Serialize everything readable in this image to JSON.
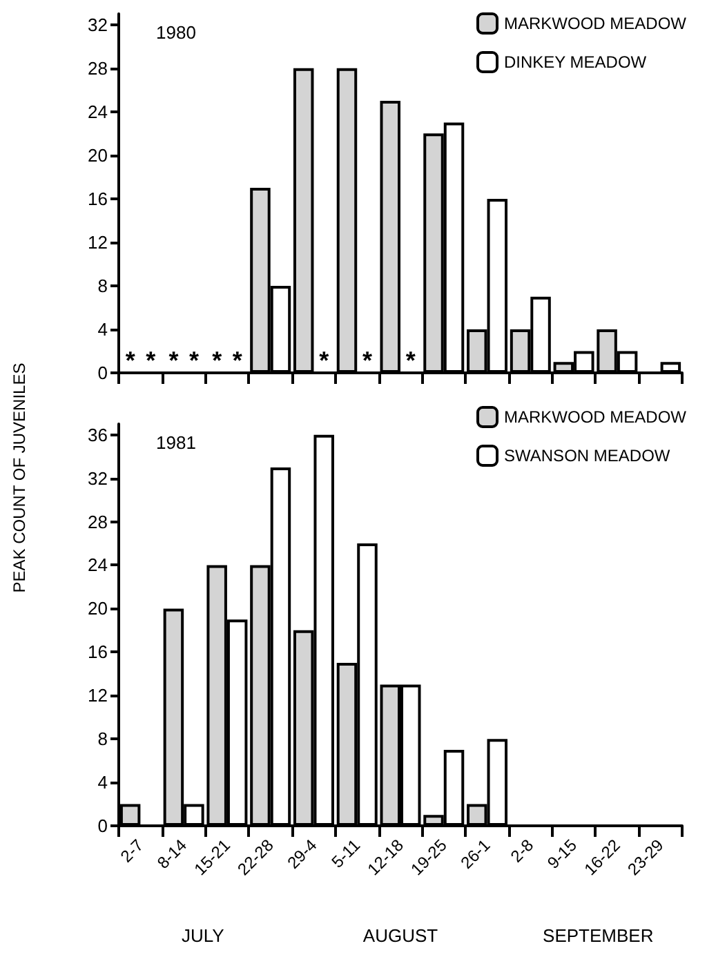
{
  "chart_data": [
    {
      "type": "bar",
      "title": "1980",
      "ylabel": "PEAK COUNT OF JUVENILES",
      "categories": [
        null,
        null,
        null,
        null,
        null,
        null,
        null,
        null,
        null,
        null,
        null,
        null,
        null
      ],
      "series": [
        {
          "name": "MARKWOOD MEADOW",
          "color": "#d4d4d4",
          "values": [
            null,
            null,
            null,
            17,
            28,
            28,
            25,
            22,
            4,
            4,
            1,
            4,
            0
          ]
        },
        {
          "name": "DINKEY MEADOW",
          "color": "#ffffff",
          "values": [
            null,
            null,
            null,
            8,
            null,
            null,
            null,
            23,
            16,
            7,
            2,
            2,
            1
          ]
        }
      ],
      "annotations": [
        "*",
        "*",
        "*",
        "*",
        "*",
        "*",
        "*",
        "*",
        "*"
      ],
      "ylim": [
        0,
        33
      ],
      "yticks": [
        0,
        4,
        8,
        12,
        16,
        20,
        24,
        28,
        32
      ],
      "legend": "top right",
      "grid": false,
      "tick_labels": "y"
    },
    {
      "type": "bar",
      "title": "1981",
      "categories": [
        "2-7",
        "8-14",
        "15-21",
        "22-28",
        "29-4",
        "5-11",
        "12-18",
        "19-25",
        "26-1",
        "2-8",
        "9-15",
        "16-22",
        "23-29"
      ],
      "series": [
        {
          "name": "MARKWOOD MEADOW",
          "color": "#d4d4d4",
          "values": [
            2,
            20,
            24,
            24,
            18,
            15,
            13,
            1,
            2,
            0,
            0,
            0,
            0
          ]
        },
        {
          "name": "SWANSON MEADOW",
          "color": "#ffffff",
          "values": [
            0,
            2,
            19,
            33,
            36,
            26,
            13,
            7,
            8,
            0,
            0,
            0,
            0
          ]
        }
      ],
      "annotations": [
        "JULY",
        "AUGUST",
        "SEPTEMBER"
      ],
      "ylim": [
        0,
        37
      ],
      "yticks": [
        0,
        4,
        8,
        12,
        16,
        20,
        24,
        28,
        32,
        36
      ],
      "legend": "top right",
      "grid": false
    }
  ]
}
